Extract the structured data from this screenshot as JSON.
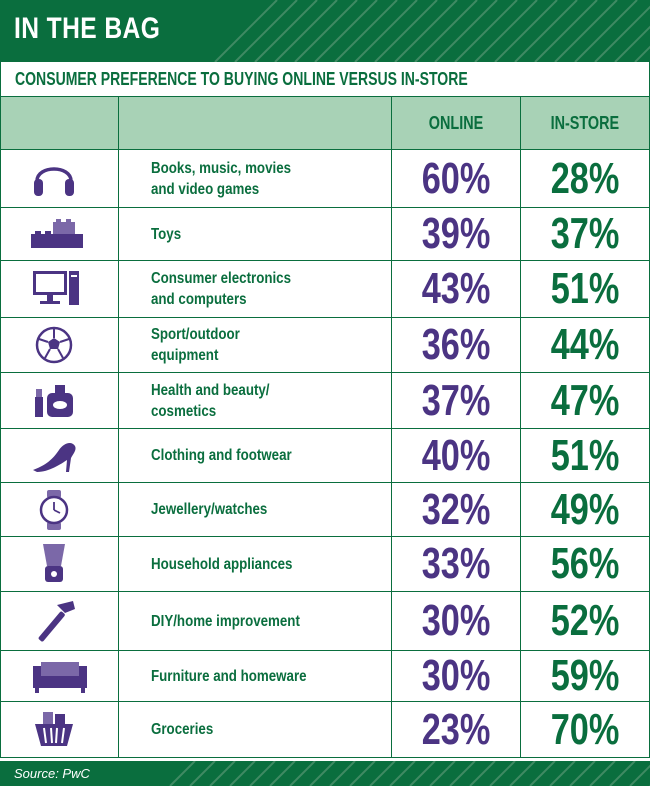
{
  "title": "IN THE BAG",
  "subtitle": "CONSUMER PREFERENCE TO BUYING ONLINE VERSUS IN-STORE",
  "source": "Source: PwC",
  "colors": {
    "green": "#0a6e3e",
    "purple": "#4b3483",
    "header_bg": "#a8d2b6"
  },
  "chart_data": {
    "type": "table",
    "title": "IN THE BAG",
    "subtitle": "CONSUMER PREFERENCE TO BUYING ONLINE VERSUS IN-STORE",
    "columns": [
      "",
      "",
      "ONLINE",
      "IN-STORE"
    ],
    "rows": [
      {
        "icon": "headphones-icon",
        "category": "Books, music, movies\nand video games",
        "online": "60%",
        "instore": "28%"
      },
      {
        "icon": "toy-bricks-icon",
        "category": "Toys",
        "online": "39%",
        "instore": "37%"
      },
      {
        "icon": "computer-icon",
        "category": "Consumer electronics\nand computers",
        "online": "43%",
        "instore": "51%"
      },
      {
        "icon": "football-icon",
        "category": "Sport/outdoor\nequipment",
        "online": "36%",
        "instore": "44%"
      },
      {
        "icon": "cosmetics-icon",
        "category": "Health and beauty/\ncosmetics",
        "online": "37%",
        "instore": "47%"
      },
      {
        "icon": "high-heel-icon",
        "category": "Clothing and footwear",
        "online": "40%",
        "instore": "51%"
      },
      {
        "icon": "watch-icon",
        "category": "Jewellery/watches",
        "online": "32%",
        "instore": "49%"
      },
      {
        "icon": "blender-icon",
        "category": "Household appliances",
        "online": "33%",
        "instore": "56%"
      },
      {
        "icon": "hammer-icon",
        "category": "DIY/home improvement",
        "online": "30%",
        "instore": "52%"
      },
      {
        "icon": "sofa-icon",
        "category": "Furniture and homeware",
        "online": "30%",
        "instore": "59%"
      },
      {
        "icon": "basket-icon",
        "category": "Groceries",
        "online": "23%",
        "instore": "70%"
      }
    ]
  }
}
